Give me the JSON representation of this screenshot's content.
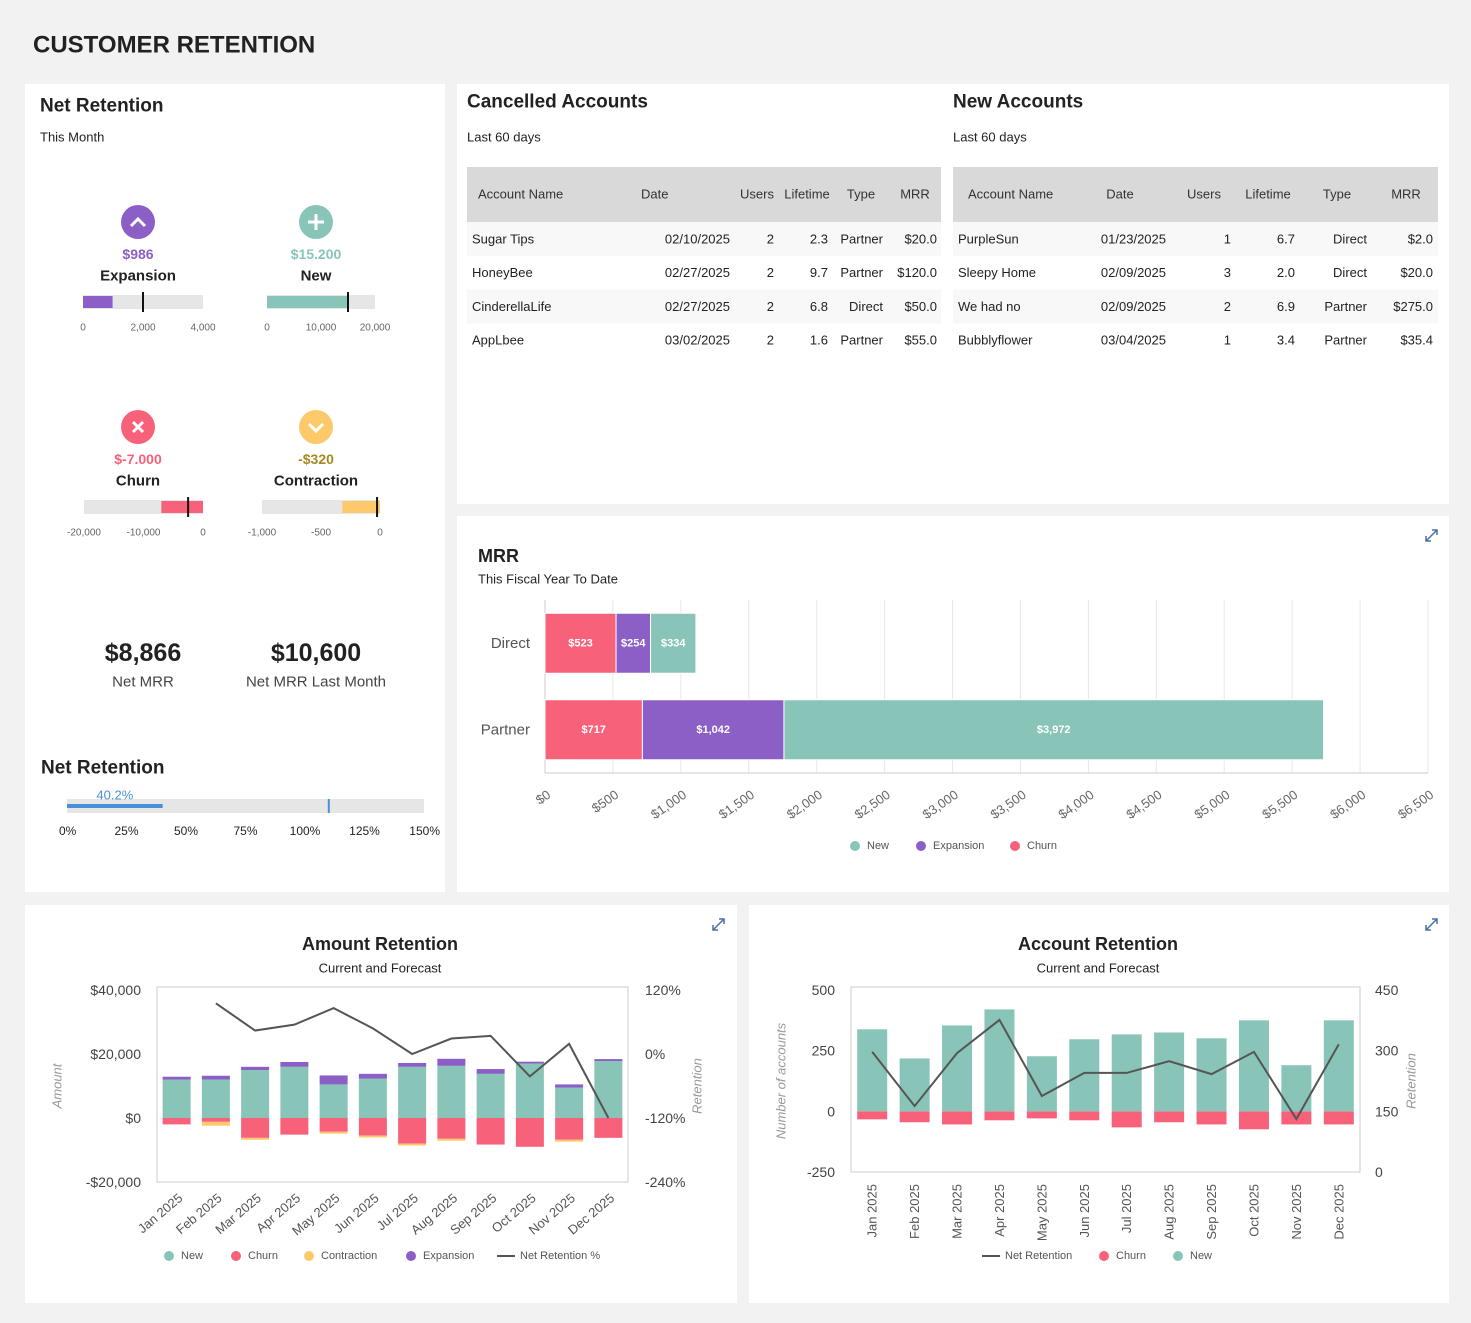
{
  "header": {
    "title": "CUSTOMER RETENTION"
  },
  "net_retention_panel": {
    "title": "Net Retention",
    "subtitle": "This Month",
    "kpis": [
      {
        "value": "$8,866",
        "label": "Net MRR"
      },
      {
        "value": "$10,600",
        "label": "Net MRR Last Month"
      }
    ]
  },
  "tables": [
    {
      "title": "Cancelled Accounts",
      "subtitle": "Last 60 days",
      "columns": [
        "Account Name",
        "Date",
        "Users",
        "Lifetime",
        "Type",
        "MRR"
      ],
      "rows": [
        [
          "Sugar Tips",
          "02/10/2025",
          "2",
          "2.3",
          "Partner",
          "$20.0"
        ],
        [
          "HoneyBee",
          "02/27/2025",
          "2",
          "9.7",
          "Partner",
          "$120.0"
        ],
        [
          "CinderellaLife",
          "02/27/2025",
          "2",
          "6.8",
          "Direct",
          "$50.0"
        ],
        [
          "AppLbee",
          "03/02/2025",
          "2",
          "1.6",
          "Partner",
          "$55.0"
        ]
      ]
    },
    {
      "title": "New Accounts",
      "subtitle": "Last 60 days",
      "columns": [
        "Account Name",
        "Date",
        "Users",
        "Lifetime",
        "Type",
        "MRR"
      ],
      "rows": [
        [
          "PurpleSun",
          "01/23/2025",
          "1",
          "6.7",
          "Direct",
          "$2.0"
        ],
        [
          "Sleepy Home",
          "02/09/2025",
          "3",
          "2.0",
          "Direct",
          "$20.0"
        ],
        [
          "We had no",
          "02/09/2025",
          "2",
          "6.9",
          "Partner",
          "$275.0"
        ],
        [
          "Bubblyflower",
          "03/04/2025",
          "1",
          "3.4",
          "Partner",
          "$35.4"
        ]
      ]
    }
  ],
  "chart_data": [
    {
      "type": "bullet",
      "title": "Expansion",
      "value": 986,
      "value_label": "$986",
      "target": 2000,
      "xlim": [
        0,
        4000
      ],
      "xticks": [
        0,
        {
          "value": 2000,
          "label": "2,000"
        },
        {
          "value": 4000,
          "label": "4,000"
        }
      ],
      "color": "#8b5fc6",
      "label_color": "#8b5fc6"
    },
    {
      "type": "bullet",
      "title": "New",
      "value": 15200,
      "value_label": "$15.200",
      "target": 15000,
      "xlim": [
        0,
        20000
      ],
      "xticks": [
        0,
        {
          "value": 10000,
          "label": "10,000"
        },
        {
          "value": 20000,
          "label": "20,000"
        }
      ],
      "color": "#88c5b8",
      "label_color": "#88c5b8"
    },
    {
      "type": "bullet",
      "title": "Churn",
      "value": -7000,
      "value_label": "$-7.000",
      "target": -2500,
      "xlim": [
        -20000,
        0
      ],
      "xticks": [
        {
          "value": -20000,
          "label": "-20,000"
        },
        {
          "value": -10000,
          "label": "-10,000"
        },
        0
      ],
      "color": "#f7617a",
      "label_color": "#f7617a"
    },
    {
      "type": "bullet",
      "title": "Contraction",
      "value": -320,
      "value_label": "-$320",
      "target": -25,
      "xlim": [
        -1000,
        0
      ],
      "xticks": [
        {
          "value": -1000,
          "label": "-1,000"
        },
        -500,
        0
      ],
      "color": "#fdc96b",
      "label_color": "#a8891f"
    },
    {
      "type": "bullet",
      "title": "Net Retention",
      "value": 40.2,
      "value_label": "40.2%",
      "target": 110,
      "xlim": [
        0,
        150
      ],
      "xticks": [
        {
          "value": 0,
          "label": "0%"
        },
        {
          "value": 25,
          "label": "25%"
        },
        {
          "value": 50,
          "label": "50%"
        },
        {
          "value": 75,
          "label": "75%"
        },
        {
          "value": 100,
          "label": "100%"
        },
        {
          "value": 125,
          "label": "125%"
        },
        {
          "value": 150,
          "label": "150%"
        }
      ],
      "color": "#4a90d9",
      "label_color": "#4a90d9"
    },
    {
      "type": "bar",
      "orientation": "horizontal",
      "stacked": true,
      "title": "MRR",
      "subtitle": "This Fiscal Year To Date",
      "categories": [
        "Direct",
        "Partner"
      ],
      "series": [
        {
          "name": "New",
          "color": "#88c5b8",
          "values": [
            334,
            3972
          ],
          "value_labels": [
            "$334",
            "$3,972"
          ]
        },
        {
          "name": "Expansion",
          "color": "#8b5fc6",
          "values": [
            254,
            1042
          ],
          "value_labels": [
            "$254",
            "$1,042"
          ]
        },
        {
          "name": "Churn",
          "color": "#f7617a",
          "values": [
            523,
            717
          ],
          "value_labels": [
            "$523",
            "$717"
          ]
        }
      ],
      "xlim": [
        0,
        6500
      ],
      "xticks": [
        {
          "value": 0,
          "label": "$0"
        },
        {
          "value": 500,
          "label": "$500"
        },
        {
          "value": 1000,
          "label": "$1,000"
        },
        {
          "value": 1500,
          "label": "$1,500"
        },
        {
          "value": 2000,
          "label": "$2,000"
        },
        {
          "value": 2500,
          "label": "$2,500"
        },
        {
          "value": 3000,
          "label": "$3,000"
        },
        {
          "value": 3500,
          "label": "$3,500"
        },
        {
          "value": 4000,
          "label": "$4,000"
        },
        {
          "value": 4500,
          "label": "$4,500"
        },
        {
          "value": 5000,
          "label": "$5,000"
        },
        {
          "value": 5500,
          "label": "$5,500"
        },
        {
          "value": 6000,
          "label": "$6,000"
        },
        {
          "value": 6500,
          "label": "$6,500"
        }
      ],
      "grid": true
    },
    {
      "type": "bar",
      "orientation": "vertical",
      "stacked": true,
      "title": "Amount Retention",
      "subtitle": "Current and Forecast",
      "ylabel": "Amount",
      "y2label": "Retention",
      "categories": [
        "Jan 2025",
        "Feb 2025",
        "Mar 2025",
        "Apr 2025",
        "May 2025",
        "Jun 2025",
        "Jul 2025",
        "Aug 2025",
        "Sep 2025",
        "Oct 2025",
        "Nov 2025",
        "Dec 2025"
      ],
      "series": [
        {
          "name": "New",
          "color": "#88c5b8",
          "values": [
            12000,
            12000,
            15000,
            16000,
            10500,
            12300,
            16000,
            16300,
            13800,
            17000,
            9500,
            17800
          ]
        },
        {
          "name": "Churn",
          "color": "#f7617a",
          "values": [
            -2000,
            -1200,
            -6200,
            -5200,
            -4300,
            -5500,
            -8000,
            -6500,
            -8300,
            -9000,
            -6800,
            -6200
          ]
        },
        {
          "name": "Contraction",
          "color": "#fdc96b",
          "values": [
            0,
            -1200,
            -600,
            0,
            -600,
            -600,
            -600,
            -600,
            0,
            0,
            -600,
            0
          ]
        },
        {
          "name": "Expansion",
          "color": "#8b5fc6",
          "values": [
            900,
            1200,
            1000,
            1500,
            2800,
            1500,
            1200,
            2200,
            1500,
            600,
            1000,
            600
          ]
        },
        {
          "name": "Net Retention %",
          "color": "#555555",
          "type": "line",
          "axis": "y2",
          "values": [
            null,
            95,
            44,
            55,
            86,
            48,
            0,
            29,
            34,
            -42,
            19,
            -120
          ]
        }
      ],
      "ylim": [
        -20000,
        40000
      ],
      "yticks": [
        {
          "value": 40000,
          "label": "$40,000"
        },
        {
          "value": 20000,
          "label": "$20,000"
        },
        {
          "value": 0,
          "label": "$0"
        },
        {
          "value": -20000,
          "label": "-$20,000"
        }
      ],
      "y2lim": [
        -240,
        120
      ],
      "y2ticks": [
        {
          "value": 120,
          "label": "120%"
        },
        {
          "value": 0,
          "label": "0%"
        },
        {
          "value": -120,
          "label": "-120%"
        },
        {
          "value": -240,
          "label": "-240%"
        }
      ],
      "grid": false
    },
    {
      "type": "bar",
      "orientation": "vertical",
      "stacked": true,
      "title": "Account Retention",
      "subtitle": "Current and Forecast",
      "ylabel": "Number of accounts",
      "y2label": "Retention",
      "categories": [
        "Jan 2025",
        "Feb 2025",
        "Mar 2025",
        "Apr 2025",
        "May 2025",
        "Jun 2025",
        "Jul 2025",
        "Aug 2025",
        "Sep 2025",
        "Oct 2025",
        "Nov 2025",
        "Dec 2025"
      ],
      "series": [
        {
          "name": "Net Retention",
          "color": "#555555",
          "type": "line",
          "axis": "y2",
          "values": [
            297,
            163,
            294,
            376,
            188,
            245,
            245,
            274,
            242,
            297,
            131,
            316
          ]
        },
        {
          "name": "Churn",
          "color": "#f7617a",
          "values": [
            -33,
            -45,
            -54,
            -37,
            -29,
            -37,
            -66,
            -45,
            -54,
            -74,
            -54,
            -54
          ]
        },
        {
          "name": "New",
          "color": "#88c5b8",
          "values": [
            338,
            218,
            354,
            420,
            227,
            297,
            317,
            325,
            301,
            375,
            190,
            375
          ]
        }
      ],
      "ylim": [
        -250,
        500
      ],
      "yticks": [
        500,
        250,
        0,
        -250
      ],
      "y2lim": [
        0,
        450
      ],
      "y2ticks": [
        450,
        300,
        150,
        0
      ],
      "grid": false
    }
  ]
}
